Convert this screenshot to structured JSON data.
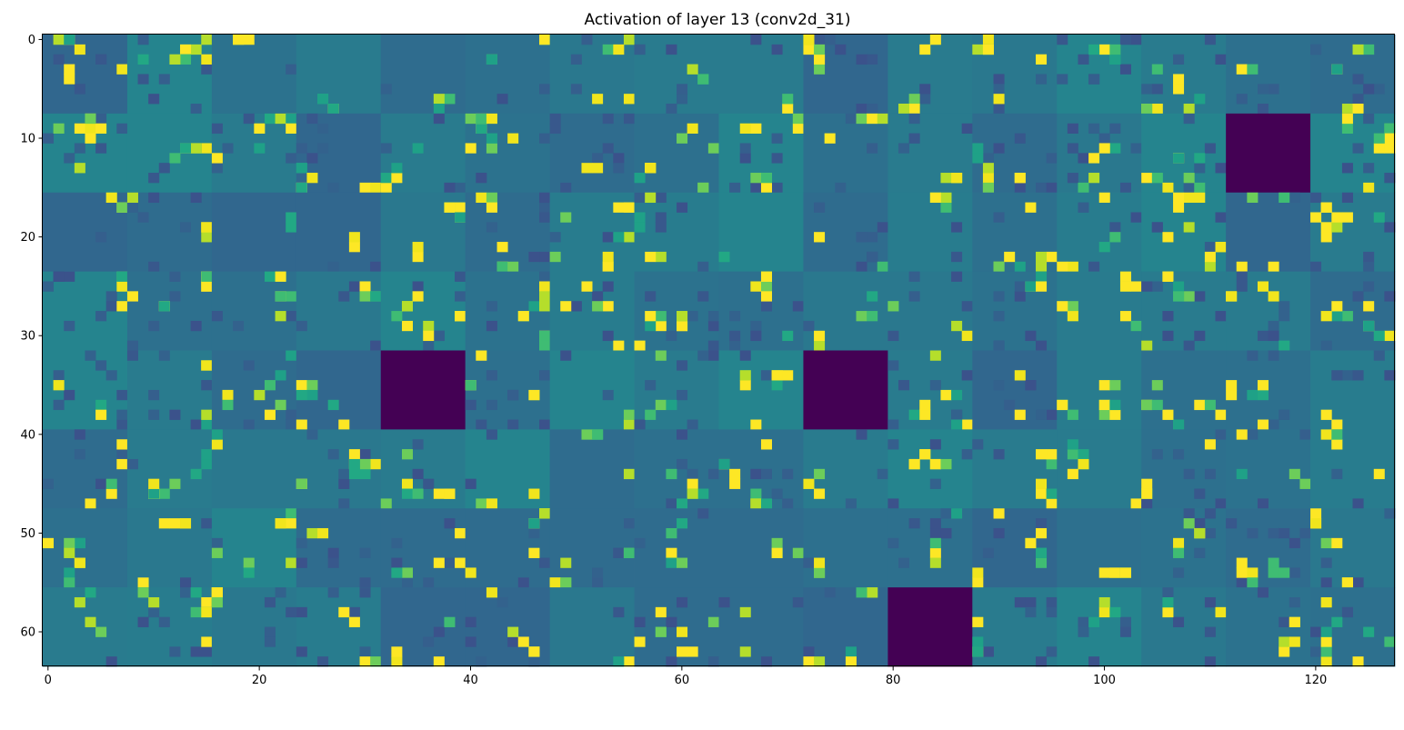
{
  "chart_data": {
    "type": "heatmap",
    "title": "Activation of layer 13 (conv2d_31)",
    "xlabel": "",
    "ylabel": "",
    "grid": false,
    "colormap": "viridis",
    "colors": {
      "dark": "#440154",
      "teal_base": "#23748c",
      "bright_green": "#6ccd5a",
      "yellow": "#fde725"
    },
    "shape": {
      "rows": 64,
      "cols": 128,
      "tile_rows": 8,
      "tile_cols": 16,
      "tile_size": 8
    },
    "xlim": [
      -0.5,
      127.5
    ],
    "ylim": [
      63.5,
      -0.5
    ],
    "xticks": [
      0,
      20,
      40,
      60,
      80,
      100,
      120
    ],
    "yticks": [
      0,
      10,
      20,
      30,
      40,
      50,
      60
    ],
    "dead_tiles": [
      {
        "row": 1,
        "col": 14
      },
      {
        "row": 4,
        "col": 4
      },
      {
        "row": 4,
        "col": 9
      },
      {
        "row": 7,
        "col": 10
      }
    ],
    "scatter_rng_seed": 1337
  }
}
